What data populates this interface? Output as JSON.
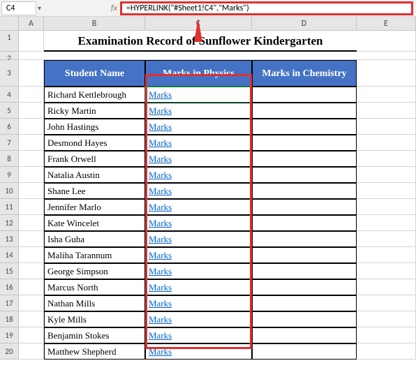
{
  "name_box": "C4",
  "formula_bar": "=HYPERLINK(\"#Sheet1!C4\",\"Marks\")",
  "title": "Examination Record of Sunflower Kindergarten",
  "columns": {
    "A": "A",
    "B": "B",
    "C": "C",
    "D": "D",
    "E": "E"
  },
  "table": {
    "headers": [
      "Student Name",
      "Marks in Physics",
      "Marks in Chemistry"
    ],
    "link_text": "Marks",
    "students": [
      "Richard Kettlebrough",
      "Ricky Martin",
      "John Hastings",
      "Desmond Hayes",
      "Frank Orwell",
      "Natalia Austin",
      "Shane Lee",
      "Jennifer Marlo",
      "Kate Wincelet",
      "Isha Guha",
      "Maliha Tarannum",
      "George Simpson",
      "Marcus North",
      "Nathan Mills",
      "Kyle Mills",
      "Benjamin Stokes",
      "Matthew Shepherd"
    ]
  },
  "row_numbers": [
    "1",
    "2",
    "3",
    "4",
    "5",
    "6",
    "7",
    "8",
    "9",
    "10",
    "11",
    "12",
    "13",
    "14",
    "15",
    "16",
    "17",
    "18",
    "19",
    "20"
  ],
  "colors": {
    "header_bg": "#4472c4",
    "link": "#0563c1",
    "highlight": "#e03030",
    "selection": "#107c41"
  }
}
